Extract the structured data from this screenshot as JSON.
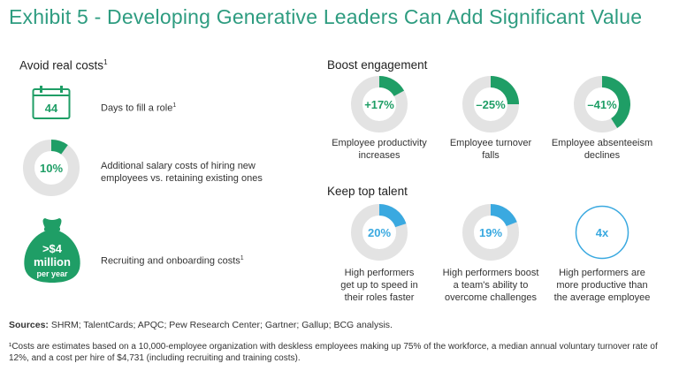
{
  "title": "Exhibit 5 - Developing Generative Leaders Can Add Significant Value",
  "avoid": {
    "heading": "Avoid real costs",
    "heading_sup": "1",
    "calendar_value": "44",
    "calendar_label": "Days to fill a role",
    "calendar_sup": "1",
    "salary": {
      "value_text": "10%",
      "fraction": 0.1,
      "label": "Additional salary costs of hiring new employees vs. retaining existing ones"
    },
    "bag_line1": ">$4",
    "bag_line2": "million",
    "bag_line3": "per year",
    "bag_label": "Recruiting and onboarding costs",
    "bag_sup": "1"
  },
  "engagement": {
    "heading": "Boost engagement",
    "items": [
      {
        "value_text": "+17%",
        "fraction": 0.17,
        "label_line1": "Employee productivity",
        "label_line2": "increases"
      },
      {
        "value_text": "–25%",
        "fraction": 0.25,
        "label_line1": "Employee turnover",
        "label_line2": "falls"
      },
      {
        "value_text": "–41%",
        "fraction": 0.41,
        "label_line1": "Employee absenteeism",
        "label_line2": "declines"
      }
    ]
  },
  "talent": {
    "heading": "Keep top talent",
    "items": [
      {
        "value_text": "20%",
        "fraction": 0.2,
        "label_line1": "High performers",
        "label_line2": "get up to speed in",
        "label_line3": "their roles faster"
      },
      {
        "value_text": "19%",
        "fraction": 0.19,
        "label_line1": "High performers boost",
        "label_line2": "a team's ability to",
        "label_line3": "overcome challenges"
      },
      {
        "value_text": "4x",
        "fraction": null,
        "label_line1": "High performers are",
        "label_line2": "more productive than",
        "label_line3": "the average employee"
      }
    ]
  },
  "sources_label": "Sources:",
  "sources_text": " SHRM; TalentCards; APQC; Pew Research Center; Gartner; Gallup; BCG analysis.",
  "footnote": "¹Costs are estimates based on a 10,000-employee organization with deskless employees making up 75% of the workforce, a median annual voluntary turnover rate of 12%, and a cost per hire of $4,731 (including recruiting and training costs).",
  "colors": {
    "green": "#1f9e66",
    "blue": "#3aa9e0",
    "gray": "#e3e3e3",
    "title": "#2e9c80"
  },
  "chart_data": [
    {
      "type": "pie",
      "categories": [
        "Additional salary costs"
      ],
      "values": [
        10
      ]
    },
    {
      "type": "pie",
      "categories": [
        "Employee productivity increases",
        "Employee turnover falls",
        "Employee absenteeism declines"
      ],
      "values": [
        17,
        -25,
        -41
      ]
    },
    {
      "type": "pie",
      "categories": [
        "Get up to speed faster",
        "Overcome challenges"
      ],
      "values": [
        20,
        19
      ]
    }
  ]
}
